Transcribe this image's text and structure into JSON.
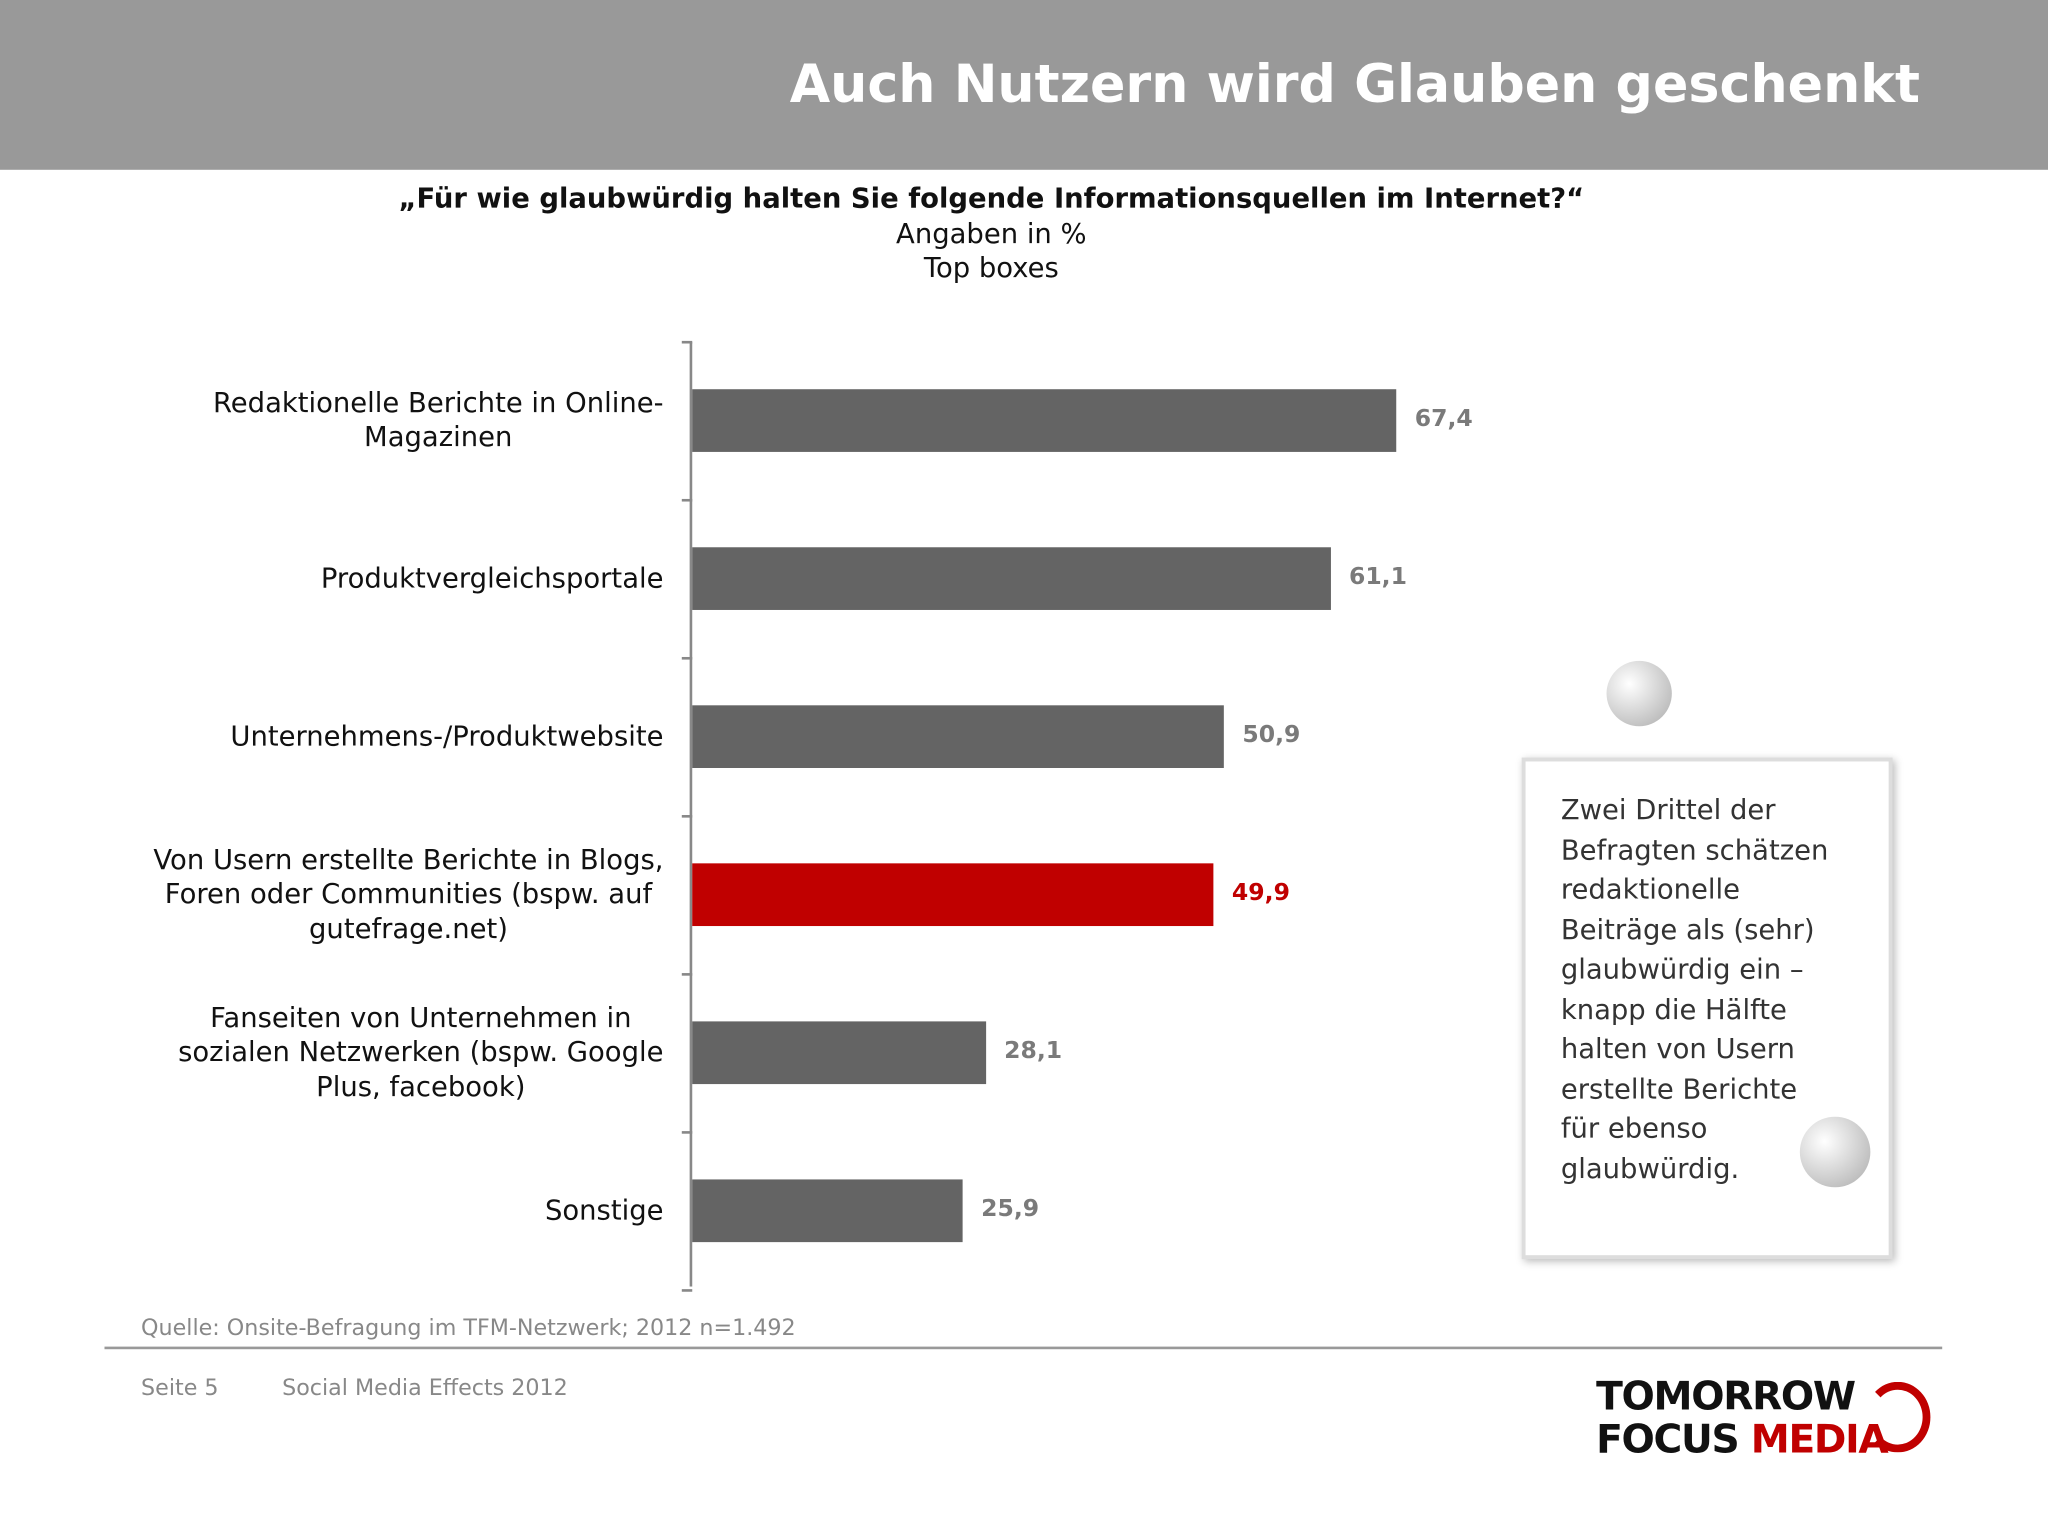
{
  "header": {
    "title": "Auch Nutzern wird Glauben geschenkt"
  },
  "chart_data": {
    "type": "bar",
    "orientation": "horizontal",
    "title": "„Für wie glaubwürdig halten Sie folgende Informationsquellen im Internet?“",
    "subtitle": [
      "Angaben in %",
      "Top boxes"
    ],
    "categories": [
      "Redaktionelle Berichte in Online-\nMagazinen",
      "Produktvergleichsportale",
      "Unternehmens-/Produktwebsite",
      "Von Usern erstellte Berichte in Blogs,\nForen oder Communities (bspw. auf\ngutefrage.net)",
      "Fanseiten von Unternehmen in\nsozialen Netzwerken (bspw. Google\nPlus, facebook)",
      "Sonstige"
    ],
    "values": [
      67.4,
      61.1,
      50.9,
      49.9,
      28.1,
      25.9
    ],
    "value_labels": [
      "67,4",
      "61,1",
      "50,9",
      "49,9",
      "28,1",
      "25,9"
    ],
    "colors": [
      "#646464",
      "#646464",
      "#646464",
      "#c00000",
      "#646464",
      "#646464"
    ],
    "label_colors": [
      "#7a7a7a",
      "#7a7a7a",
      "#7a7a7a",
      "#c00000",
      "#7a7a7a",
      "#7a7a7a"
    ],
    "xlim": [
      0,
      100
    ]
  },
  "callout": {
    "text": "Zwei Drittel der\nBefragten schätzen\nredaktionelle\nBeiträge als  (sehr)\nglaubwürdig ein –\nknapp die Hälfte\nhalten von Usern\nerstellte Berichte\nfür ebenso\nglaubwürdig."
  },
  "source": "Quelle: Onsite-Befragung im TFM-Netzwerk; 2012 n=1.492",
  "footer": {
    "page": "Seite 5",
    "title": "Social Media Effects 2012"
  },
  "logo": {
    "line1": "TOMORROW",
    "line2a": "FOCUS",
    "line2b": "MEDIA"
  }
}
